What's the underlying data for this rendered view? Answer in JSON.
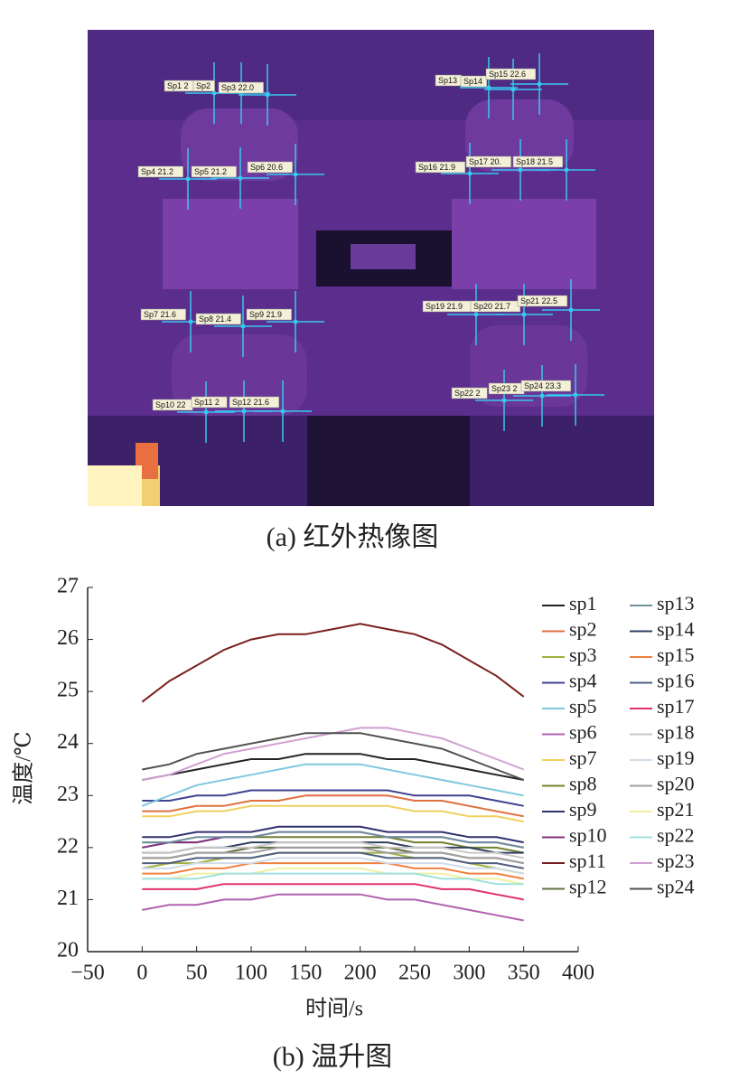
{
  "figure_a": {
    "caption": "(a) 红外热像图",
    "spots": [
      "Sp1 2",
      "Sp2",
      "Sp3 22.0",
      "Sp4 21.2",
      "Sp5 21.2",
      "Sp6 20.6",
      "Sp7 21.6",
      "Sp8 21.4",
      "Sp9 21.9",
      "Sp10 22",
      "Sp11 2",
      "Sp12 21.6",
      "Sp13",
      "Sp14",
      "Sp15 22.6",
      "Sp16 21.9",
      "Sp17 20.",
      "Sp18 21.5",
      "Sp19 21.9",
      "Sp20 21.7",
      "Sp21 22.5",
      "Sp22 2",
      "Sp23 2",
      "Sp24 23.3"
    ]
  },
  "chart_data": {
    "type": "line",
    "caption": "(b) 温升图",
    "xlabel": "时间/s",
    "ylabel": "温度/℃",
    "x": [
      0,
      25,
      50,
      75,
      100,
      125,
      150,
      175,
      200,
      225,
      250,
      275,
      300,
      325,
      350
    ],
    "xlim": [
      -50,
      400
    ],
    "xticks": [
      {
        "value": -50,
        "label": "−50"
      },
      0,
      50,
      100,
      150,
      200,
      250,
      300,
      350,
      400
    ],
    "ylim": [
      20,
      27
    ],
    "yticks": [
      20,
      21,
      22,
      23,
      24,
      25,
      26,
      27
    ],
    "grid": false,
    "series": [
      {
        "name": "sp1",
        "color": "#222222",
        "values": [
          23.3,
          23.4,
          23.5,
          23.6,
          23.7,
          23.7,
          23.8,
          23.8,
          23.8,
          23.7,
          23.7,
          23.6,
          23.5,
          23.4,
          23.3
        ]
      },
      {
        "name": "sp2",
        "color": "#e07040",
        "values": [
          22.7,
          22.7,
          22.8,
          22.8,
          22.9,
          22.9,
          23.0,
          23.0,
          23.0,
          23.0,
          22.9,
          22.9,
          22.8,
          22.7,
          22.6
        ]
      },
      {
        "name": "sp3",
        "color": "#a0b040",
        "values": [
          21.6,
          21.7,
          21.7,
          21.8,
          21.8,
          21.9,
          21.9,
          21.9,
          21.9,
          21.9,
          21.8,
          21.8,
          21.7,
          21.6,
          21.5
        ]
      },
      {
        "name": "sp4",
        "color": "#404090",
        "values": [
          22.9,
          22.9,
          23.0,
          23.0,
          23.1,
          23.1,
          23.1,
          23.1,
          23.1,
          23.1,
          23.0,
          23.0,
          23.0,
          22.9,
          22.8
        ]
      },
      {
        "name": "sp5",
        "color": "#80c8e0",
        "values": [
          22.8,
          23.0,
          23.2,
          23.3,
          23.4,
          23.5,
          23.6,
          23.6,
          23.6,
          23.5,
          23.4,
          23.3,
          23.2,
          23.1,
          23.0
        ]
      },
      {
        "name": "sp6",
        "color": "#b060b0",
        "values": [
          20.8,
          20.9,
          20.9,
          21.0,
          21.0,
          21.1,
          21.1,
          21.1,
          21.1,
          21.0,
          21.0,
          20.9,
          20.8,
          20.7,
          20.6
        ]
      },
      {
        "name": "sp7",
        "color": "#f0d060",
        "values": [
          22.6,
          22.6,
          22.7,
          22.7,
          22.8,
          22.8,
          22.8,
          22.8,
          22.8,
          22.8,
          22.7,
          22.7,
          22.6,
          22.6,
          22.5
        ]
      },
      {
        "name": "sp8",
        "color": "#708030",
        "values": [
          22.1,
          22.1,
          22.1,
          22.2,
          22.2,
          22.2,
          22.2,
          22.2,
          22.2,
          22.2,
          22.1,
          22.1,
          22.0,
          22.0,
          21.9
        ]
      },
      {
        "name": "sp9",
        "color": "#303070",
        "values": [
          22.2,
          22.2,
          22.3,
          22.3,
          22.3,
          22.4,
          22.4,
          22.4,
          22.4,
          22.3,
          22.3,
          22.3,
          22.2,
          22.2,
          22.1
        ]
      },
      {
        "name": "sp10",
        "color": "#803080",
        "values": [
          22.0,
          22.1,
          22.1,
          22.2,
          22.2,
          22.3,
          22.3,
          22.3,
          22.3,
          22.2,
          22.2,
          22.2,
          22.1,
          22.1,
          22.0
        ]
      },
      {
        "name": "sp11",
        "color": "#7a1f1f",
        "values": [
          24.8,
          25.2,
          25.5,
          25.8,
          26.0,
          26.1,
          26.1,
          26.2,
          26.3,
          26.2,
          26.1,
          25.9,
          25.6,
          25.3,
          24.9
        ]
      },
      {
        "name": "sp12",
        "color": "#607040",
        "values": [
          21.8,
          21.8,
          21.9,
          21.9,
          22.0,
          22.0,
          22.0,
          22.0,
          22.0,
          22.0,
          21.9,
          21.9,
          21.8,
          21.8,
          21.7
        ]
      },
      {
        "name": "sp13",
        "color": "#7090a0",
        "values": [
          22.1,
          22.1,
          22.2,
          22.2,
          22.2,
          22.3,
          22.3,
          22.3,
          22.3,
          22.2,
          22.2,
          22.2,
          22.1,
          22.1,
          22.0
        ]
      },
      {
        "name": "sp14",
        "color": "#304060",
        "values": [
          21.9,
          21.9,
          22.0,
          22.0,
          22.1,
          22.1,
          22.1,
          22.1,
          22.1,
          22.1,
          22.0,
          22.0,
          22.0,
          21.9,
          21.9
        ]
      },
      {
        "name": "sp15",
        "color": "#f08040",
        "values": [
          21.5,
          21.5,
          21.6,
          21.6,
          21.7,
          21.7,
          21.7,
          21.7,
          21.7,
          21.7,
          21.6,
          21.6,
          21.5,
          21.5,
          21.4
        ]
      },
      {
        "name": "sp16",
        "color": "#506080",
        "values": [
          21.7,
          21.7,
          21.8,
          21.8,
          21.8,
          21.9,
          21.9,
          21.9,
          21.9,
          21.8,
          21.8,
          21.8,
          21.7,
          21.7,
          21.6
        ]
      },
      {
        "name": "sp17",
        "color": "#e03070",
        "values": [
          21.2,
          21.2,
          21.2,
          21.3,
          21.3,
          21.3,
          21.3,
          21.3,
          21.3,
          21.3,
          21.3,
          21.2,
          21.2,
          21.1,
          21.0
        ]
      },
      {
        "name": "sp18",
        "color": "#c8c8c8",
        "values": [
          21.9,
          21.9,
          22.0,
          22.0,
          22.0,
          22.1,
          22.1,
          22.1,
          22.1,
          22.0,
          22.0,
          22.0,
          21.9,
          21.9,
          21.8
        ]
      },
      {
        "name": "sp19",
        "color": "#d0dce8",
        "values": [
          21.6,
          21.6,
          21.7,
          21.7,
          21.7,
          21.8,
          21.8,
          21.8,
          21.8,
          21.7,
          21.7,
          21.7,
          21.6,
          21.6,
          21.5
        ]
      },
      {
        "name": "sp20",
        "color": "#a0a0a0",
        "values": [
          21.8,
          21.8,
          21.9,
          21.9,
          21.9,
          22.0,
          22.0,
          22.0,
          22.0,
          21.9,
          21.9,
          21.9,
          21.8,
          21.8,
          21.7
        ]
      },
      {
        "name": "sp21",
        "color": "#f0f0a0",
        "values": [
          21.4,
          21.4,
          21.5,
          21.5,
          21.5,
          21.6,
          21.6,
          21.6,
          21.6,
          21.5,
          21.5,
          21.5,
          21.4,
          21.4,
          21.3
        ]
      },
      {
        "name": "sp22",
        "color": "#a0e0e0",
        "values": [
          21.4,
          21.4,
          21.4,
          21.5,
          21.5,
          21.5,
          21.5,
          21.5,
          21.5,
          21.5,
          21.5,
          21.4,
          21.4,
          21.3,
          21.3
        ]
      },
      {
        "name": "sp23",
        "color": "#d0a0d0",
        "values": [
          23.3,
          23.4,
          23.6,
          23.8,
          23.9,
          24.0,
          24.1,
          24.2,
          24.3,
          24.3,
          24.2,
          24.1,
          23.9,
          23.7,
          23.5
        ]
      },
      {
        "name": "sp24",
        "color": "#505050",
        "values": [
          23.5,
          23.6,
          23.8,
          23.9,
          24.0,
          24.1,
          24.2,
          24.2,
          24.2,
          24.1,
          24.0,
          23.9,
          23.7,
          23.5,
          23.3
        ]
      }
    ]
  }
}
